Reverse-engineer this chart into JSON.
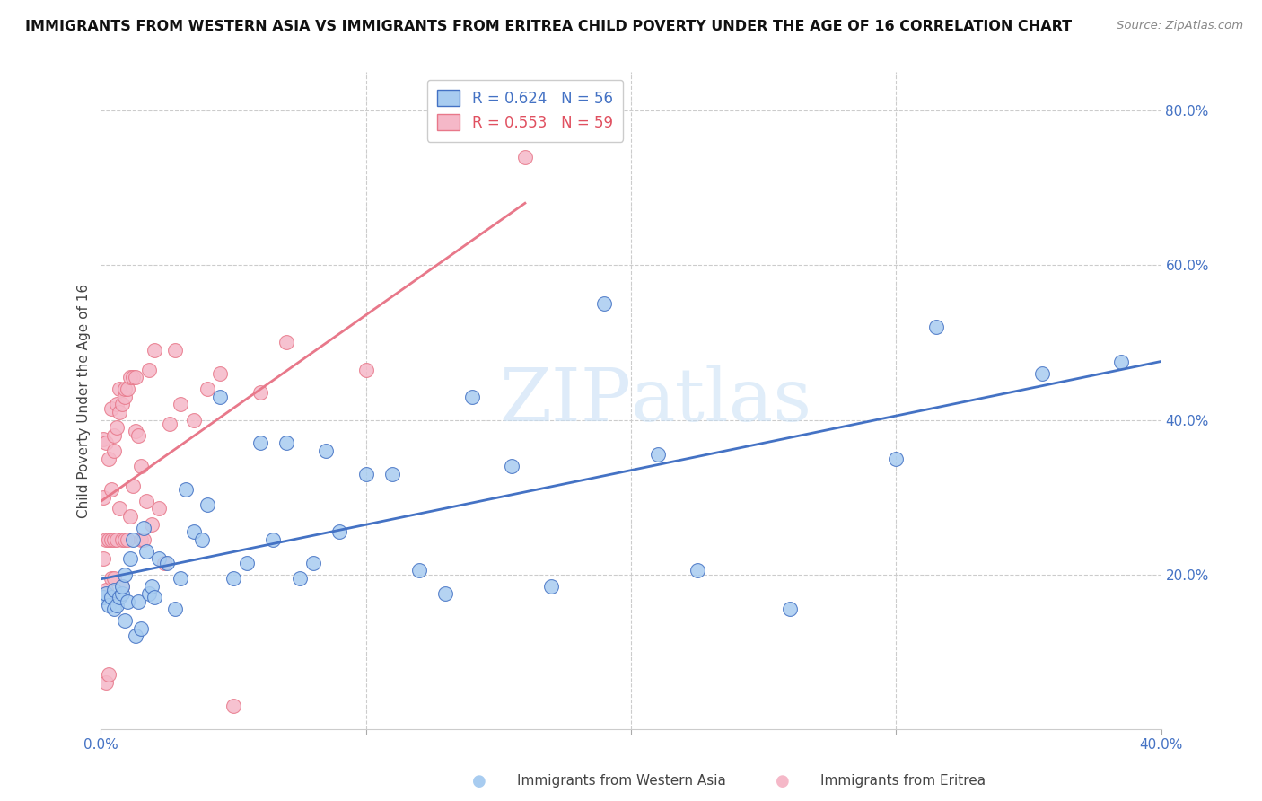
{
  "title": "IMMIGRANTS FROM WESTERN ASIA VS IMMIGRANTS FROM ERITREA CHILD POVERTY UNDER THE AGE OF 16 CORRELATION CHART",
  "source": "Source: ZipAtlas.com",
  "ylabel": "Child Poverty Under the Age of 16",
  "xlabel_blue": "Immigrants from Western Asia",
  "xlabel_pink": "Immigrants from Eritrea",
  "legend_blue_R": "R = 0.624",
  "legend_blue_N": "N = 56",
  "legend_pink_R": "R = 0.553",
  "legend_pink_N": "N = 59",
  "xlim": [
    0,
    0.4
  ],
  "ylim": [
    0,
    0.85
  ],
  "color_blue": "#A8CCF0",
  "color_blue_line": "#4472C4",
  "color_pink": "#F5B8C8",
  "color_pink_line": "#E8788A",
  "watermark_zip": "ZIP",
  "watermark_atlas": "atlas",
  "blue_x": [
    0.001,
    0.002,
    0.003,
    0.004,
    0.005,
    0.005,
    0.006,
    0.007,
    0.008,
    0.008,
    0.009,
    0.009,
    0.01,
    0.011,
    0.012,
    0.013,
    0.014,
    0.015,
    0.016,
    0.017,
    0.018,
    0.019,
    0.02,
    0.022,
    0.025,
    0.028,
    0.03,
    0.032,
    0.035,
    0.038,
    0.04,
    0.045,
    0.05,
    0.055,
    0.06,
    0.065,
    0.07,
    0.075,
    0.08,
    0.085,
    0.09,
    0.1,
    0.11,
    0.12,
    0.13,
    0.14,
    0.155,
    0.17,
    0.19,
    0.21,
    0.225,
    0.26,
    0.3,
    0.315,
    0.355,
    0.385
  ],
  "blue_y": [
    0.17,
    0.175,
    0.16,
    0.17,
    0.155,
    0.18,
    0.16,
    0.17,
    0.175,
    0.185,
    0.14,
    0.2,
    0.165,
    0.22,
    0.245,
    0.12,
    0.165,
    0.13,
    0.26,
    0.23,
    0.175,
    0.185,
    0.17,
    0.22,
    0.215,
    0.155,
    0.195,
    0.31,
    0.255,
    0.245,
    0.29,
    0.43,
    0.195,
    0.215,
    0.37,
    0.245,
    0.37,
    0.195,
    0.215,
    0.36,
    0.255,
    0.33,
    0.33,
    0.205,
    0.175,
    0.43,
    0.34,
    0.185,
    0.55,
    0.355,
    0.205,
    0.155,
    0.35,
    0.52,
    0.46,
    0.475
  ],
  "pink_x": [
    0.001,
    0.001,
    0.001,
    0.002,
    0.002,
    0.002,
    0.002,
    0.003,
    0.003,
    0.003,
    0.004,
    0.004,
    0.004,
    0.004,
    0.005,
    0.005,
    0.005,
    0.005,
    0.006,
    0.006,
    0.006,
    0.007,
    0.007,
    0.007,
    0.008,
    0.008,
    0.008,
    0.009,
    0.009,
    0.009,
    0.01,
    0.01,
    0.011,
    0.011,
    0.012,
    0.012,
    0.013,
    0.013,
    0.014,
    0.015,
    0.015,
    0.016,
    0.017,
    0.018,
    0.019,
    0.02,
    0.022,
    0.024,
    0.026,
    0.028,
    0.03,
    0.035,
    0.04,
    0.045,
    0.05,
    0.06,
    0.07,
    0.1,
    0.16
  ],
  "pink_y": [
    0.3,
    0.22,
    0.375,
    0.18,
    0.245,
    0.37,
    0.06,
    0.245,
    0.35,
    0.07,
    0.31,
    0.245,
    0.415,
    0.195,
    0.38,
    0.245,
    0.36,
    0.195,
    0.39,
    0.245,
    0.42,
    0.285,
    0.41,
    0.44,
    0.185,
    0.42,
    0.245,
    0.43,
    0.44,
    0.245,
    0.245,
    0.44,
    0.275,
    0.455,
    0.315,
    0.455,
    0.385,
    0.455,
    0.38,
    0.34,
    0.245,
    0.245,
    0.295,
    0.465,
    0.265,
    0.49,
    0.285,
    0.215,
    0.395,
    0.49,
    0.42,
    0.4,
    0.44,
    0.46,
    0.03,
    0.435,
    0.5,
    0.465,
    0.74
  ]
}
